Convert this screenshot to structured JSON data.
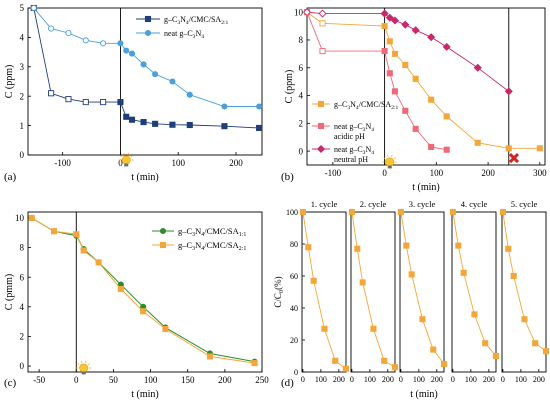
{
  "figure": {
    "panels": [
      "a",
      "b",
      "c",
      "d"
    ]
  },
  "chart_data": [
    {
      "type": "scatter",
      "panel_label": "(a)",
      "xlabel": "t (min)",
      "ylabel": "C (ppm)",
      "xlim": [
        -160,
        245
      ],
      "ylim": [
        0,
        5
      ],
      "xticks": [
        -100,
        0,
        100,
        200
      ],
      "yticks": [
        0,
        1,
        2,
        3,
        4,
        5
      ],
      "vline_x": 0,
      "lamp_x": 10,
      "legend_position": "top-right",
      "series": [
        {
          "name": "g–C3N4/CMC/SA2:1",
          "name_main": "g–C",
          "name_parts": [
            "3",
            "N",
            "4",
            "/CMC/SA",
            "2:1"
          ],
          "color": "#1f3e7a",
          "marker": "square",
          "x": [
            -150,
            -120,
            -90,
            -60,
            -30,
            0,
            10,
            20,
            40,
            60,
            90,
            120,
            180,
            240
          ],
          "y": [
            5.0,
            2.1,
            1.9,
            1.8,
            1.8,
            1.8,
            1.3,
            1.2,
            1.12,
            1.06,
            1.03,
            1.02,
            0.98,
            0.92
          ]
        },
        {
          "name": "neat g–C3N4",
          "name_main": "neat g–C",
          "name_parts": [
            "3",
            "N",
            "4"
          ],
          "color": "#4a9fdc",
          "marker": "circle",
          "x": [
            -150,
            -120,
            -90,
            -60,
            -30,
            0,
            10,
            20,
            40,
            60,
            90,
            120,
            180,
            240
          ],
          "y": [
            5.0,
            4.3,
            4.15,
            3.9,
            3.8,
            3.8,
            3.55,
            3.45,
            3.08,
            2.75,
            2.5,
            2.05,
            1.65,
            1.65
          ]
        }
      ]
    },
    {
      "type": "scatter",
      "panel_label": "(b)",
      "xlabel": "t (min)",
      "ylabel": "C (ppm)",
      "xlim": [
        -150,
        310
      ],
      "ylim": [
        -1,
        10.3
      ],
      "xticks": [
        -100,
        0,
        100,
        200,
        300
      ],
      "yticks": [
        0,
        2,
        4,
        6,
        8,
        10
      ],
      "vlines_x": [
        0,
        240
      ],
      "lamp_x": 10,
      "cross_x": 250,
      "legend_position": "center-left",
      "series": [
        {
          "name": "g–C3N4/CMC/SA2:1",
          "name_main": "g–C",
          "name_parts": [
            "3",
            "N",
            "4",
            "/CMC/SA",
            "2:1"
          ],
          "color": "#f3a73a",
          "marker": "square",
          "x": [
            -150,
            -120,
            0,
            10,
            20,
            40,
            60,
            90,
            120,
            180,
            240,
            300
          ],
          "y": [
            10.0,
            9.2,
            9.0,
            7.9,
            7.0,
            6.2,
            5.2,
            3.7,
            2.5,
            0.6,
            0.2,
            0.2
          ]
        },
        {
          "name": "neat g–C3N4 acidic pH",
          "name_main": "neat g–C",
          "name_parts": [
            "3",
            "N",
            "4"
          ],
          "name_extra": "acidic pH",
          "color": "#ef6a78",
          "marker": "square",
          "x": [
            -150,
            -120,
            0,
            10,
            20,
            40,
            60,
            90,
            120
          ],
          "y": [
            10.0,
            7.2,
            7.2,
            5.6,
            4.3,
            2.9,
            1.6,
            0.3,
            0.1
          ]
        },
        {
          "name": "neat g–C3N4 neutral pH",
          "name_main": "neat g–C",
          "name_parts": [
            "3",
            "N",
            "4"
          ],
          "name_extra": "neutral pH",
          "color": "#c8286c",
          "marker": "diamond",
          "x": [
            -150,
            -120,
            0,
            10,
            20,
            40,
            60,
            90,
            120,
            180,
            240
          ],
          "y": [
            10.0,
            9.9,
            9.9,
            9.6,
            9.4,
            9.1,
            8.7,
            8.2,
            7.5,
            6.0,
            4.3
          ]
        }
      ]
    },
    {
      "type": "line",
      "panel_label": "(c)",
      "xlabel": "t (min)",
      "ylabel": "C (pmm)",
      "xlim": [
        -65,
        250
      ],
      "ylim": [
        -0.4,
        10.4
      ],
      "xticks": [
        -50,
        0,
        50,
        100,
        150,
        200,
        250
      ],
      "yticks": [
        0,
        2,
        4,
        6,
        8,
        10
      ],
      "vline_x": 0,
      "lamp_x": 10,
      "legend_position": "top-right",
      "series": [
        {
          "name": "g–C3N4/CMC/SA1:1",
          "name_main": "g–C",
          "name_parts": [
            "3",
            "N",
            "4",
            "/CMC/SA",
            "1:1"
          ],
          "color": "#2e8b2e",
          "marker": "circle",
          "x": [
            -60,
            -30,
            0,
            10,
            30,
            60,
            90,
            120,
            180,
            240
          ],
          "y": [
            10.0,
            9.1,
            8.8,
            7.9,
            7.0,
            5.5,
            4.0,
            2.6,
            0.85,
            0.3
          ]
        },
        {
          "name": "g–C3N4/CMC/SA2:1",
          "name_main": "g–C",
          "name_parts": [
            "3",
            "N",
            "4",
            "/CMC/SA",
            "2:1"
          ],
          "color": "#f3a73a",
          "marker": "square",
          "x": [
            -60,
            -30,
            0,
            10,
            30,
            60,
            90,
            120,
            180,
            240
          ],
          "y": [
            10.0,
            9.1,
            8.9,
            7.8,
            7.0,
            5.2,
            3.7,
            2.5,
            0.65,
            0.2
          ]
        }
      ]
    },
    {
      "type": "line",
      "panel_label": "(d)",
      "xlabel": "t (min)",
      "ylabel": "C/C0(%)",
      "ylabel_main": "C/C",
      "ylabel_sub": "0",
      "ylabel_tail": "(%)",
      "xlim": [
        -5,
        240
      ],
      "ylim": [
        0,
        100
      ],
      "xticks": [
        0,
        100,
        200
      ],
      "yticks": [
        0,
        20,
        40,
        60,
        80,
        100
      ],
      "color": "#f3a73a",
      "x": [
        0,
        30,
        60,
        120,
        180,
        240
      ],
      "cycles": [
        {
          "label": "1. cycle",
          "y": [
            100,
            78,
            57,
            27,
            7,
            2
          ]
        },
        {
          "label": "2. cycle",
          "y": [
            100,
            77,
            56,
            27,
            7,
            3
          ]
        },
        {
          "label": "3. cycle",
          "y": [
            100,
            79,
            61,
            33,
            14,
            5
          ]
        },
        {
          "label": "4. cycle",
          "y": [
            100,
            79,
            62,
            36,
            18,
            10
          ]
        },
        {
          "label": "5. cycle",
          "y": [
            100,
            77,
            60,
            33,
            18,
            13
          ]
        }
      ]
    }
  ]
}
